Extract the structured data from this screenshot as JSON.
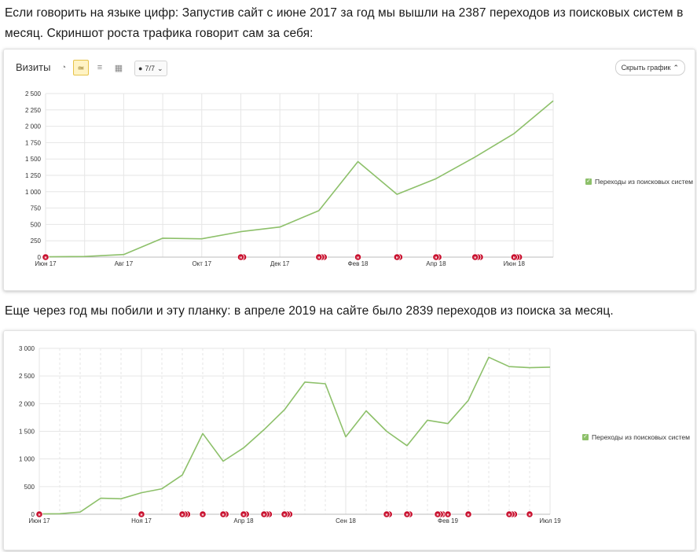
{
  "article": {
    "paragraph1": "Если говорить на языке цифр: Запустив сайт с июне 2017 за год мы вышли на 2387 переходов из поисковых систем в месяц. Скриншот роста трафика говорит сам за себя:",
    "paragraph2": "Еще через год мы побили и эту планку: в апреле 2019 на сайте было 2839 переходов из поиска за месяц."
  },
  "toolbar": {
    "title": "Визиты",
    "icons": [
      "pie-chart-icon",
      "line-chart-icon",
      "stacked-chart-icon",
      "bar-chart-icon"
    ],
    "segments_label": "7/7",
    "hide_label": "Скрыть график"
  },
  "colors": {
    "line": "#8dc06a",
    "marker": "#c8102e",
    "grid": "#e6e6e6"
  },
  "chart_data": [
    {
      "type": "line",
      "title": "Визиты",
      "legend": "Переходы из поисковых систем",
      "legend_position": "right",
      "x": [
        "Июн 17",
        "",
        "Авг 17",
        "",
        "Окт 17",
        "",
        "Дек 17",
        "",
        "Фев 18",
        "",
        "Апр 18",
        "",
        "Июн 18",
        ""
      ],
      "x_ticks": [
        {
          "index": 0,
          "label": "Июн 17"
        },
        {
          "index": 2,
          "label": "Авг 17"
        },
        {
          "index": 4,
          "label": "Окт 17"
        },
        {
          "index": 6,
          "label": "Дек 17"
        },
        {
          "index": 8,
          "label": "Фев 18"
        },
        {
          "index": 10,
          "label": "Апр 18"
        },
        {
          "index": 12,
          "label": "Июн 18"
        }
      ],
      "y_ticks": [
        {
          "v": 0,
          "label": "0"
        },
        {
          "v": 250,
          "label": "250"
        },
        {
          "v": 500,
          "label": "500"
        },
        {
          "v": 750,
          "label": "750"
        },
        {
          "v": 1000,
          "label": "1 000"
        },
        {
          "v": 1250,
          "label": "1 250"
        },
        {
          "v": 1500,
          "label": "1 500"
        },
        {
          "v": 1750,
          "label": "1 750"
        },
        {
          "v": 2000,
          "label": "2 000"
        },
        {
          "v": 2250,
          "label": "2 250"
        },
        {
          "v": 2500,
          "label": "2 500"
        }
      ],
      "series": [
        {
          "name": "Переходы из поисковых систем",
          "values": [
            5,
            10,
            40,
            290,
            280,
            390,
            460,
            710,
            1460,
            960,
            1200,
            1530,
            1890,
            2390
          ]
        }
      ],
      "ylim": [
        0,
        2500
      ],
      "markers": [
        {
          "x": 0,
          "count": 1
        },
        {
          "x": 5,
          "count": 2
        },
        {
          "x": 7,
          "count": 3
        },
        {
          "x": 8,
          "count": 1
        },
        {
          "x": 9,
          "count": 2
        },
        {
          "x": 10,
          "count": 2
        },
        {
          "x": 11,
          "count": 3
        },
        {
          "x": 12,
          "count": 3
        }
      ]
    },
    {
      "type": "line",
      "legend": "Переходы из поисковых систем",
      "legend_position": "right",
      "x": [
        "Июн 17",
        "",
        "",
        "",
        "",
        "Ноя 17",
        "",
        "",
        "",
        "",
        "Апр 18",
        "",
        "",
        "",
        "",
        "Сен 18",
        "",
        "",
        "",
        "",
        "Фев 19",
        "",
        "",
        "",
        "",
        "Июл 19"
      ],
      "x_ticks": [
        {
          "index": 0,
          "label": "Июн 17"
        },
        {
          "index": 5,
          "label": "Ноя 17"
        },
        {
          "index": 10,
          "label": "Апр 18"
        },
        {
          "index": 15,
          "label": "Сен 18"
        },
        {
          "index": 20,
          "label": "Фев 19"
        },
        {
          "index": 25,
          "label": "Июл 19"
        }
      ],
      "y_ticks": [
        {
          "v": 0,
          "label": "0"
        },
        {
          "v": 500,
          "label": "500"
        },
        {
          "v": 1000,
          "label": "1 000"
        },
        {
          "v": 1500,
          "label": "1 500"
        },
        {
          "v": 2000,
          "label": "2 000"
        },
        {
          "v": 2500,
          "label": "2 500"
        },
        {
          "v": 3000,
          "label": "3 000"
        }
      ],
      "series": [
        {
          "name": "Переходы из поисковых систем",
          "values": [
            5,
            10,
            40,
            290,
            280,
            390,
            460,
            710,
            1460,
            960,
            1200,
            1530,
            1890,
            2390,
            2360,
            1400,
            1870,
            1500,
            1240,
            1700,
            1640,
            2060,
            2839,
            2670,
            2650,
            2660
          ]
        }
      ],
      "ylim": [
        0,
        3000
      ],
      "markers": [
        {
          "x": 0,
          "count": 1
        },
        {
          "x": 5,
          "count": 1
        },
        {
          "x": 7,
          "count": 3
        },
        {
          "x": 8,
          "count": 1
        },
        {
          "x": 9,
          "count": 2
        },
        {
          "x": 10,
          "count": 2
        },
        {
          "x": 11,
          "count": 3
        },
        {
          "x": 12,
          "count": 3
        },
        {
          "x": 17,
          "count": 2
        },
        {
          "x": 18,
          "count": 2
        },
        {
          "x": 19.5,
          "count": 3
        },
        {
          "x": 20,
          "count": 1
        },
        {
          "x": 21,
          "count": 1
        },
        {
          "x": 23,
          "count": 3
        },
        {
          "x": 24,
          "count": 1
        }
      ]
    }
  ]
}
